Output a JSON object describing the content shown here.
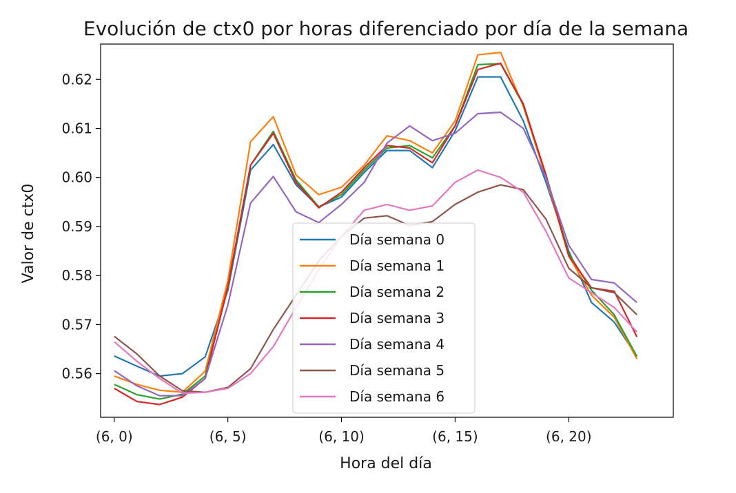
{
  "chart_data": {
    "type": "line",
    "title": "Evolución de ctx0 por horas diferenciado por día de la semana",
    "xlabel": "Hora del día",
    "ylabel": "Valor de ctx0",
    "x": [
      0,
      1,
      2,
      3,
      4,
      5,
      6,
      7,
      8,
      9,
      10,
      11,
      12,
      13,
      14,
      15,
      16,
      17,
      18,
      19,
      20,
      21,
      22,
      23
    ],
    "xlim": [
      -0.6,
      24.6
    ],
    "ylim": [
      0.5511,
      0.6272
    ],
    "x_ticks": [
      0,
      5,
      10,
      15,
      20
    ],
    "x_tick_labels": [
      "(6, 0)",
      "(6, 5)",
      "(6, 10)",
      "(6, 15)",
      "(6, 20)"
    ],
    "y_ticks": [
      0.56,
      0.57,
      0.58,
      0.59,
      0.6,
      0.61,
      0.62
    ],
    "y_tick_labels": [
      "0.56",
      "0.57",
      "0.58",
      "0.59",
      "0.60",
      "0.61",
      "0.62"
    ],
    "grid": false,
    "legend_position": "lower center",
    "series": [
      {
        "name": "Día semana 0",
        "color": "#1f77b4",
        "values": [
          0.5636,
          0.5615,
          0.5595,
          0.56,
          0.5634,
          0.577,
          0.6015,
          0.6067,
          0.5985,
          0.594,
          0.596,
          0.601,
          0.6055,
          0.6055,
          0.602,
          0.6095,
          0.6205,
          0.6205,
          0.6115,
          0.599,
          0.585,
          0.5745,
          0.5705,
          0.5635
        ]
      },
      {
        "name": "Día semana 1",
        "color": "#ff7f0e",
        "values": [
          0.5595,
          0.5578,
          0.5566,
          0.5562,
          0.5605,
          0.579,
          0.6073,
          0.6124,
          0.6005,
          0.5965,
          0.598,
          0.6025,
          0.6085,
          0.6075,
          0.605,
          0.6115,
          0.625,
          0.6255,
          0.6145,
          0.6,
          0.584,
          0.576,
          0.5715,
          0.563
        ]
      },
      {
        "name": "Día semana 2",
        "color": "#2ca02c",
        "values": [
          0.5578,
          0.5557,
          0.5548,
          0.5558,
          0.5595,
          0.5775,
          0.6025,
          0.6094,
          0.5995,
          0.594,
          0.5965,
          0.6015,
          0.606,
          0.6065,
          0.604,
          0.6105,
          0.623,
          0.6232,
          0.6148,
          0.6005,
          0.5845,
          0.577,
          0.572,
          0.5635
        ]
      },
      {
        "name": "Día semana 3",
        "color": "#d62728",
        "values": [
          0.557,
          0.5543,
          0.5537,
          0.5552,
          0.559,
          0.5778,
          0.6025,
          0.609,
          0.599,
          0.5938,
          0.597,
          0.602,
          0.6065,
          0.606,
          0.603,
          0.6105,
          0.622,
          0.6233,
          0.615,
          0.6005,
          0.584,
          0.5775,
          0.5768,
          0.5675
        ]
      },
      {
        "name": "Día semana 4",
        "color": "#9467bd",
        "values": [
          0.5606,
          0.5575,
          0.5555,
          0.5555,
          0.559,
          0.574,
          0.5948,
          0.6002,
          0.593,
          0.5908,
          0.5945,
          0.599,
          0.607,
          0.6105,
          0.6075,
          0.609,
          0.613,
          0.6133,
          0.61,
          0.6,
          0.5862,
          0.5792,
          0.5785,
          0.5745
        ]
      },
      {
        "name": "Día semana 5",
        "color": "#8c564b",
        "values": [
          0.5676,
          0.564,
          0.5595,
          0.5565,
          0.5562,
          0.5572,
          0.561,
          0.569,
          0.576,
          0.583,
          0.588,
          0.5917,
          0.5922,
          0.5902,
          0.591,
          0.5945,
          0.597,
          0.5985,
          0.5975,
          0.5915,
          0.5815,
          0.5775,
          0.5765,
          0.572
        ]
      },
      {
        "name": "Día semana 6",
        "color": "#e377c2",
        "values": [
          0.5665,
          0.5625,
          0.559,
          0.556,
          0.5562,
          0.557,
          0.56,
          0.5655,
          0.5735,
          0.5812,
          0.588,
          0.5933,
          0.5945,
          0.5933,
          0.5942,
          0.599,
          0.6015,
          0.6,
          0.597,
          0.589,
          0.5795,
          0.5765,
          0.5735,
          0.5685
        ]
      }
    ]
  }
}
